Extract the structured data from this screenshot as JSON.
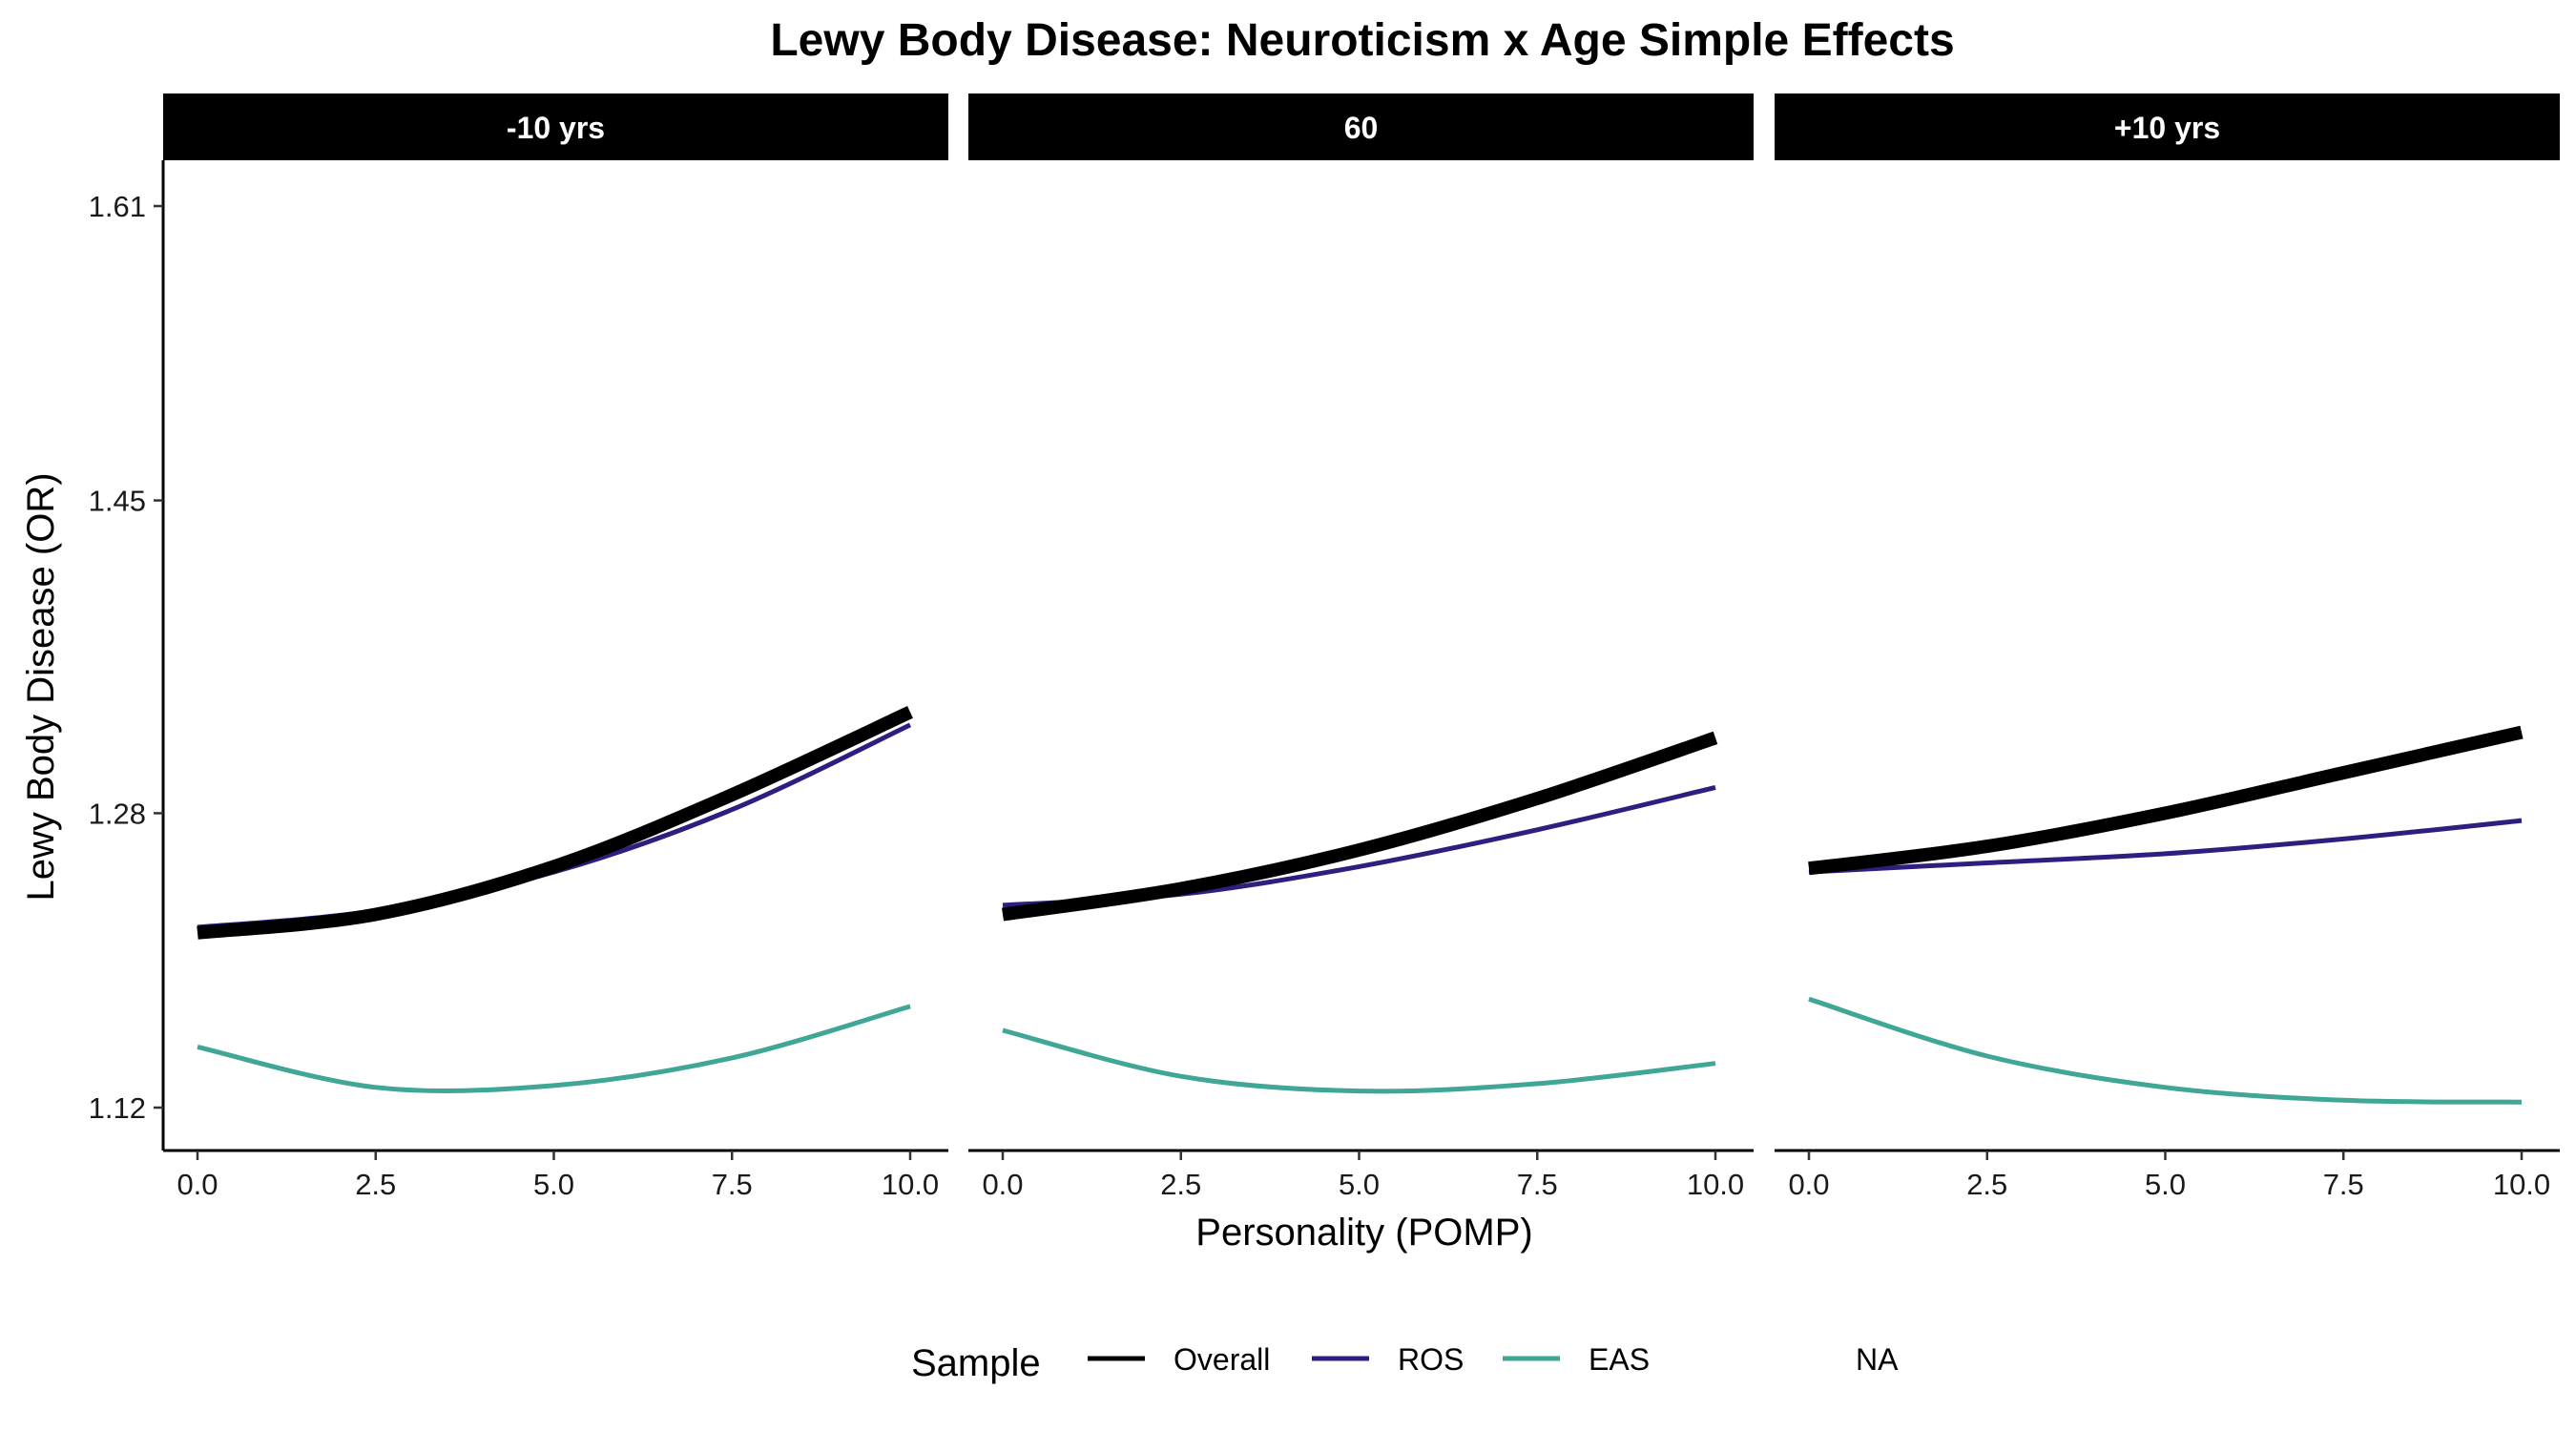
{
  "chart_data": {
    "type": "line",
    "title": "Lewy Body Disease: Neuroticism x Age Simple Effects",
    "xlabel": "Personality (POMP)",
    "ylabel": "Lewy Body Disease (OR)",
    "xlim": [
      0,
      10
    ],
    "ylim": [
      1.12,
      1.61
    ],
    "x_ticks": [
      "0.0",
      "2.5",
      "5.0",
      "7.5",
      "10.0"
    ],
    "y_ticks": [
      "1.12",
      "1.28",
      "1.45",
      "1.61"
    ],
    "grid": false,
    "legend": {
      "title": "Sample",
      "position": "bottom",
      "entries": [
        {
          "label": "Overall",
          "color": "#000000"
        },
        {
          "label": "ROS",
          "color": "#2d1e80"
        },
        {
          "label": "EAS",
          "color": "#40a696"
        },
        {
          "label": "NA",
          "color": null
        }
      ]
    },
    "panels": [
      {
        "label": "-10 yrs",
        "x": [
          0,
          2.5,
          5,
          7.5,
          10
        ],
        "series": [
          {
            "name": "Overall",
            "color": "#000000",
            "values": [
              1.215,
              1.225,
              1.251,
              1.29,
              1.335
            ]
          },
          {
            "name": "ROS",
            "color": "#2d1e80",
            "values": [
              1.218,
              1.227,
              1.248,
              1.282,
              1.328
            ]
          },
          {
            "name": "EAS",
            "color": "#40a696",
            "values": [
              1.153,
              1.131,
              1.132,
              1.147,
              1.175
            ]
          }
        ]
      },
      {
        "label": "60",
        "x": [
          0,
          2.5,
          5,
          7.5,
          10
        ],
        "series": [
          {
            "name": "Overall",
            "color": "#000000",
            "values": [
              1.225,
              1.239,
              1.26,
              1.288,
              1.321
            ]
          },
          {
            "name": "ROS",
            "color": "#2d1e80",
            "values": [
              1.23,
              1.236,
              1.251,
              1.271,
              1.294
            ]
          },
          {
            "name": "EAS",
            "color": "#40a696",
            "values": [
              1.162,
              1.137,
              1.129,
              1.133,
              1.144
            ]
          }
        ]
      },
      {
        "label": "+10 yrs",
        "x": [
          0,
          2.5,
          5,
          7.5,
          10
        ],
        "series": [
          {
            "name": "Overall",
            "color": "#000000",
            "values": [
              1.25,
              1.262,
              1.28,
              1.302,
              1.324
            ]
          },
          {
            "name": "ROS",
            "color": "#2d1e80",
            "values": [
              1.248,
              1.253,
              1.258,
              1.266,
              1.276
            ]
          },
          {
            "name": "EAS",
            "color": "#40a696",
            "values": [
              1.179,
              1.148,
              1.131,
              1.124,
              1.123
            ]
          }
        ]
      }
    ]
  }
}
